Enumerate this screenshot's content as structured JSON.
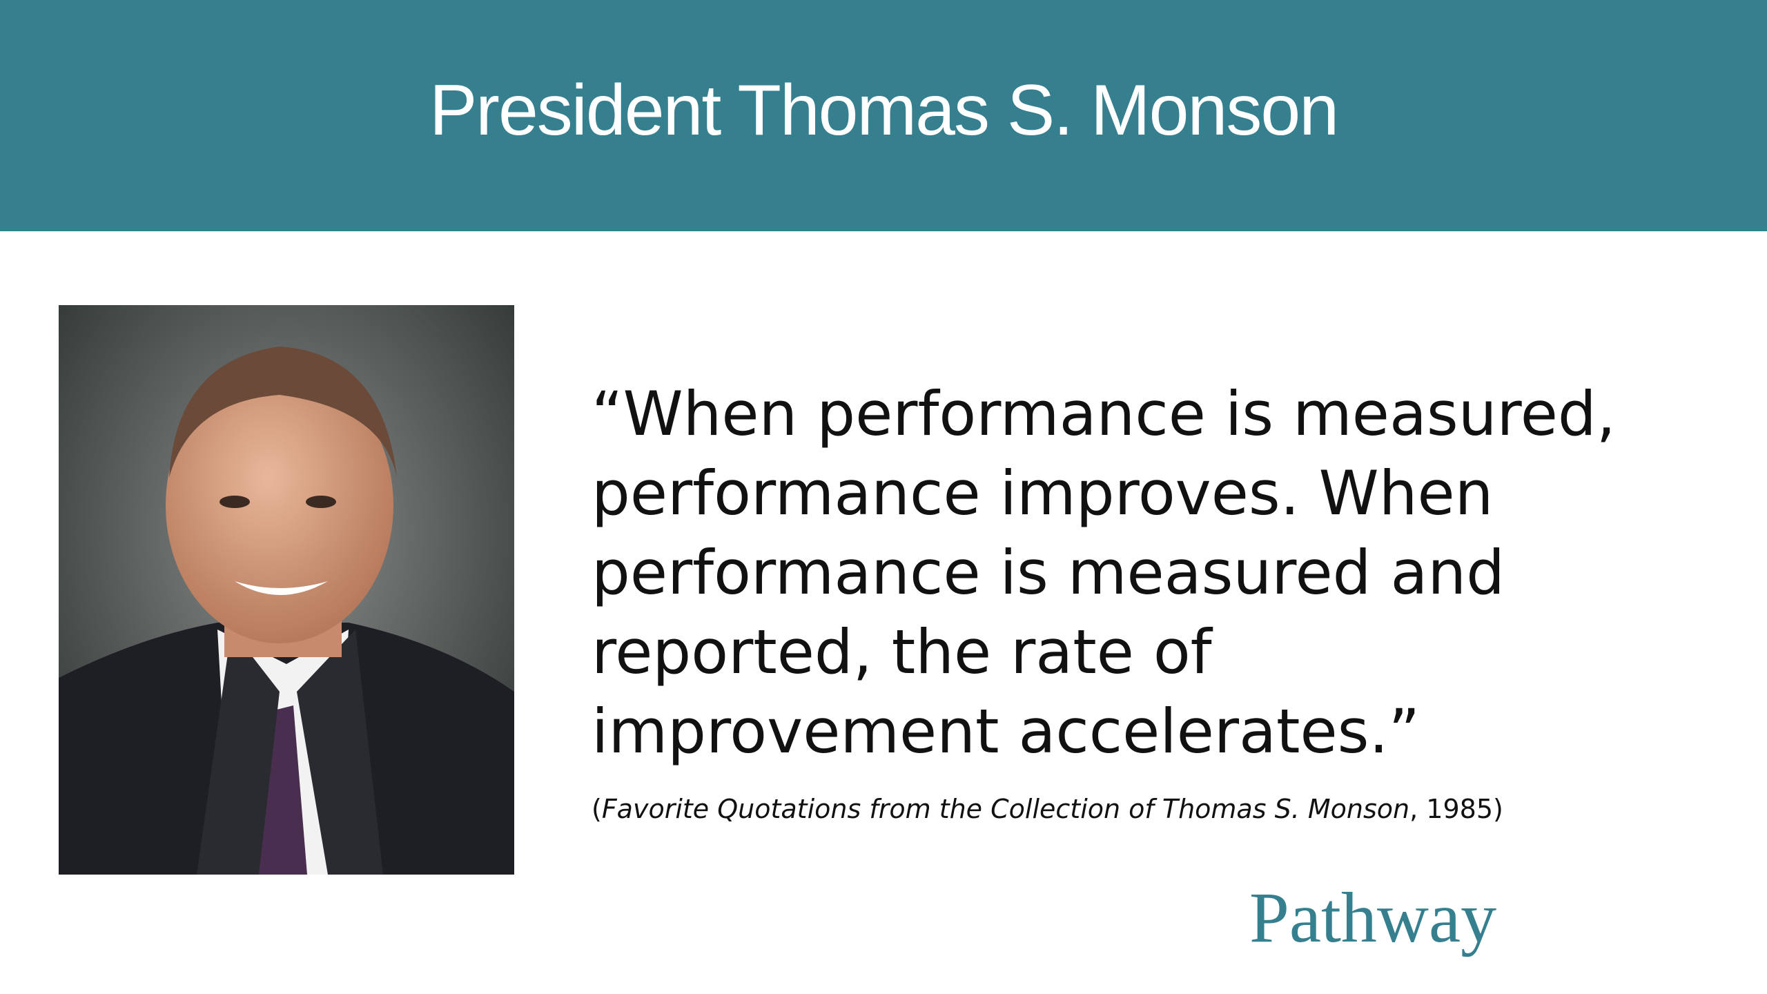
{
  "header": {
    "title": "President Thomas S. Monson"
  },
  "quote": {
    "lines": [
      "“When performance is measured,",
      "performance improves. When",
      "performance is measured and",
      "reported, the rate of",
      "improvement accelerates.”"
    ]
  },
  "citation": {
    "open": "(",
    "title": "Favorite Quotations from the Collection of Thomas S. Monson",
    "close": ", 1985)"
  },
  "logo": {
    "text": "Pathway"
  }
}
